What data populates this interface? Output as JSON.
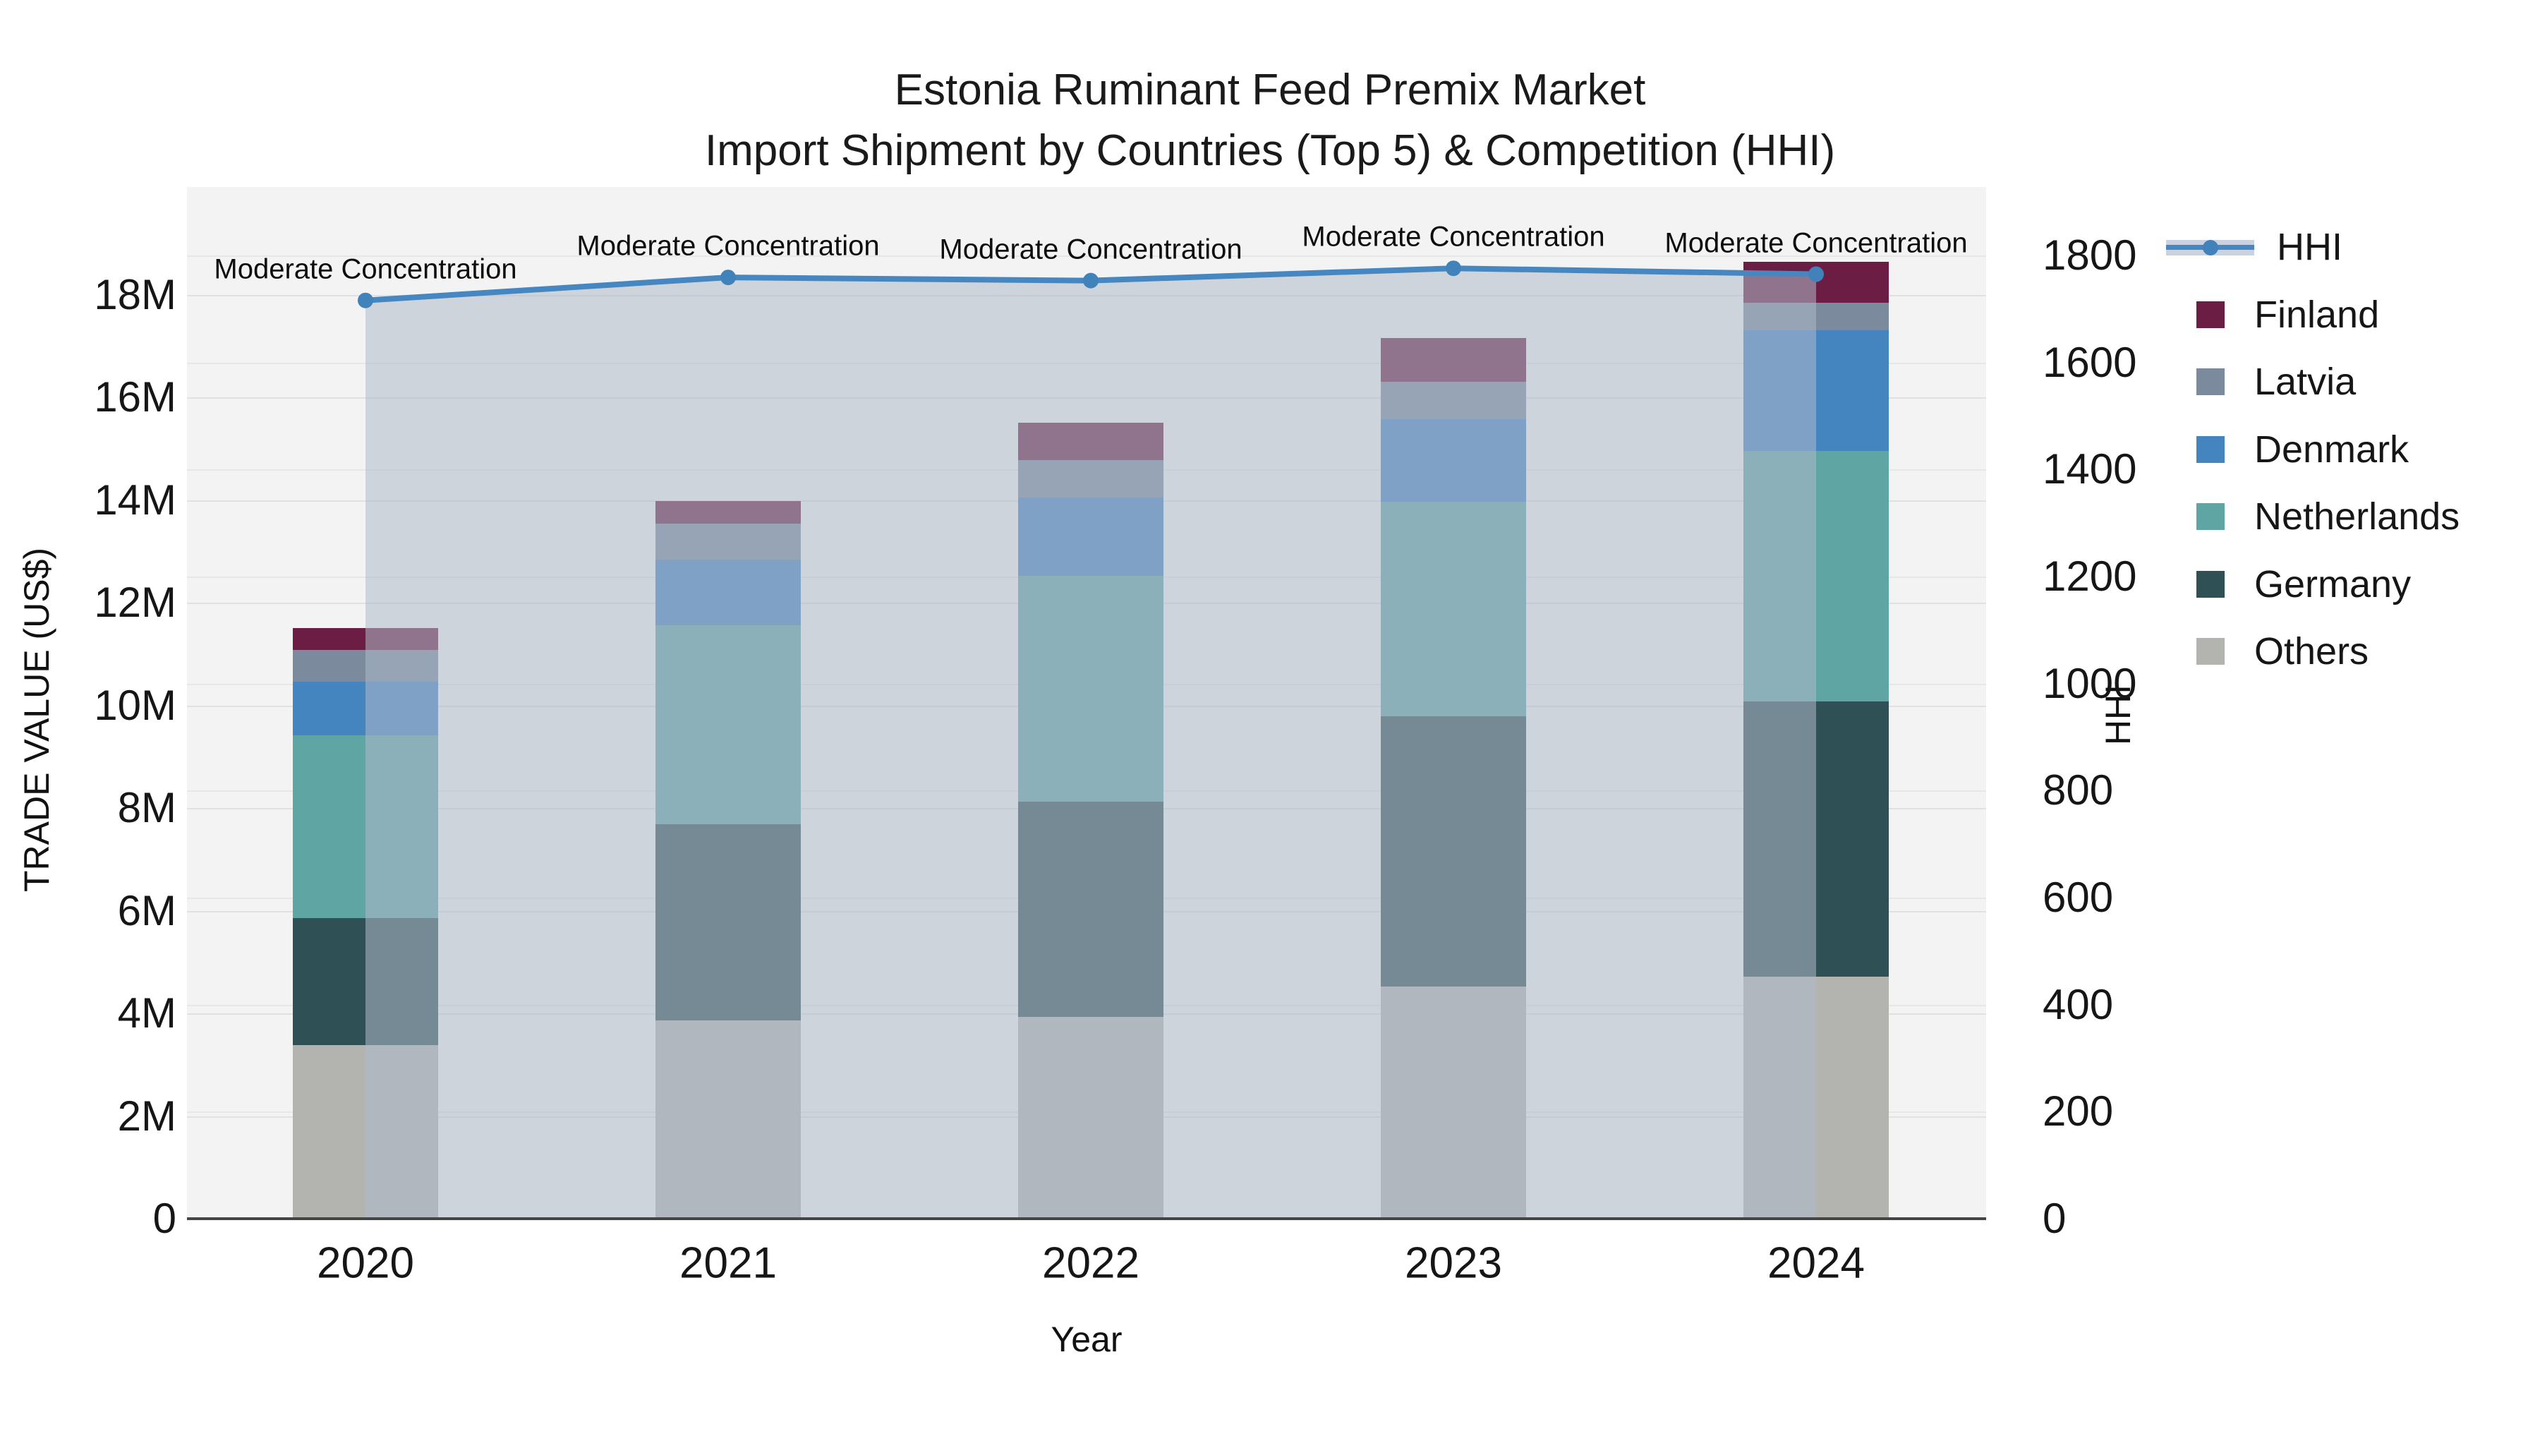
{
  "title": "Estonia Ruminant Feed Premix Market",
  "subtitle": "Import Shipment by Countries (Top 5) & Competition (HHI)",
  "axes": {
    "x_title": "Year",
    "y_left_title": "TRADE VALUE (US$)",
    "y_right_title": "HHI",
    "y_left_ticks": [
      "0",
      "2M",
      "4M",
      "6M",
      "8M",
      "10M",
      "12M",
      "14M",
      "16M",
      "18M"
    ],
    "y_left_tick_values": [
      0,
      2,
      4,
      6,
      8,
      10,
      12,
      14,
      16,
      18
    ],
    "y_right_ticks": [
      "0",
      "200",
      "400",
      "600",
      "800",
      "1000",
      "1200",
      "1400",
      "1600",
      "1800"
    ],
    "y_right_tick_values": [
      0,
      200,
      400,
      600,
      800,
      1000,
      1200,
      1400,
      1600,
      1800
    ]
  },
  "legend": [
    {
      "label": "HHI",
      "type": "line",
      "color": "#4687c1"
    },
    {
      "label": "Finland",
      "type": "swatch",
      "color": "#6c1d44"
    },
    {
      "label": "Latvia",
      "type": "swatch",
      "color": "#7b8a9c"
    },
    {
      "label": "Denmark",
      "type": "swatch",
      "color": "#4484bf"
    },
    {
      "label": "Netherlands",
      "type": "swatch",
      "color": "#5fa5a4"
    },
    {
      "label": "Germany",
      "type": "swatch",
      "color": "#2f5054"
    },
    {
      "label": "Others",
      "type": "swatch",
      "color": "#b3b3b0"
    }
  ],
  "annotations": [
    "Moderate Concentration",
    "Moderate Concentration",
    "Moderate Concentration",
    "Moderate Concentration",
    "Moderate Concentration"
  ],
  "chart_data": {
    "type": "bar",
    "subtype": "stacked-bars-with-line",
    "unit_left": "US$ millions",
    "unit_right": "HHI index",
    "categories": [
      "2020",
      "2021",
      "2022",
      "2023",
      "2024"
    ],
    "series": [
      {
        "name": "Others",
        "color": "#b3b3b0",
        "values": [
          3.38,
          3.86,
          3.93,
          4.52,
          4.72
        ]
      },
      {
        "name": "Germany",
        "color": "#2f5054",
        "values": [
          2.48,
          3.82,
          4.2,
          5.27,
          5.35
        ]
      },
      {
        "name": "Netherlands",
        "color": "#5fa5a4",
        "values": [
          3.56,
          3.88,
          4.39,
          4.18,
          4.89
        ]
      },
      {
        "name": "Denmark",
        "color": "#4484bf",
        "values": [
          1.04,
          1.28,
          1.53,
          1.6,
          2.34
        ]
      },
      {
        "name": "Latvia",
        "color": "#7b8a9c",
        "values": [
          0.62,
          0.7,
          0.72,
          0.73,
          0.54
        ]
      },
      {
        "name": "Finland",
        "color": "#6c1d44",
        "values": [
          0.42,
          0.44,
          0.74,
          0.85,
          0.8
        ]
      }
    ],
    "totals": [
      11.5,
      13.98,
      15.51,
      17.15,
      18.64
    ],
    "line_series": {
      "name": "HHI",
      "values": [
        1716,
        1759,
        1753,
        1776,
        1765
      ],
      "line_color": "#4687c1",
      "marker_color": "#4182bb",
      "area_color": "rgba(175,186,203,0.55)"
    },
    "ylim_left": [
      0,
      20
    ],
    "ylim_right": [
      0,
      1900
    ],
    "grid": true,
    "legend_position": "right"
  }
}
